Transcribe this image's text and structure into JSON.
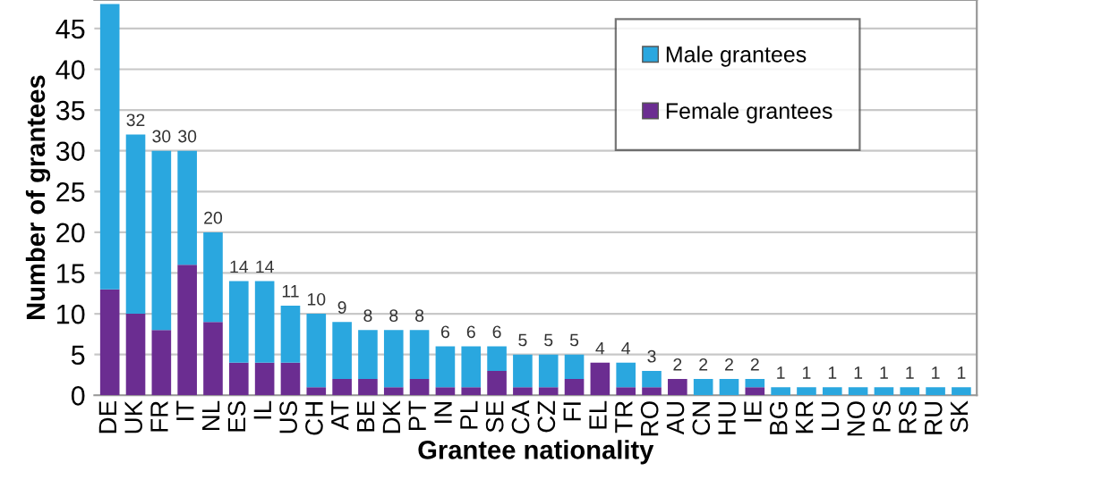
{
  "chart_data": {
    "type": "bar",
    "stacked": true,
    "xlabel": "Grantee nationality",
    "ylabel": "Number of grantees",
    "categories": [
      "DE",
      "UK",
      "FR",
      "IT",
      "NL",
      "ES",
      "IL",
      "US",
      "CH",
      "AT",
      "BE",
      "DK",
      "PT",
      "IN",
      "PL",
      "SE",
      "CA",
      "CZ",
      "FI",
      "EL",
      "TR",
      "RO",
      "AU",
      "CN",
      "HU",
      "IE",
      "BG",
      "KR",
      "LU",
      "NO",
      "PS",
      "RS",
      "RU",
      "SK"
    ],
    "series": [
      {
        "name": "Female grantees",
        "color": "#6b2d91",
        "values": [
          13,
          10,
          8,
          16,
          9,
          4,
          4,
          4,
          1,
          2,
          2,
          1,
          2,
          1,
          1,
          3,
          1,
          1,
          2,
          4,
          1,
          1,
          2,
          0,
          0,
          1,
          0,
          0,
          0,
          0,
          0,
          0,
          0,
          0
        ]
      },
      {
        "name": "Male grantees",
        "color": "#2aa7df",
        "values": [
          35,
          22,
          22,
          14,
          11,
          10,
          10,
          7,
          9,
          7,
          6,
          7,
          6,
          5,
          5,
          3,
          4,
          4,
          3,
          0,
          3,
          2,
          0,
          2,
          2,
          1,
          1,
          1,
          1,
          1,
          1,
          1,
          1,
          1
        ]
      }
    ],
    "totals": [
      null,
      "32",
      "30",
      "30",
      "20",
      "14",
      "14",
      "11",
      "10",
      "9",
      "8",
      "8",
      "8",
      "6",
      "6",
      "6",
      "5",
      "5",
      "5",
      "4",
      "4",
      "3",
      "2",
      "2",
      "2",
      "2",
      "1",
      "1",
      "1",
      "1",
      "1",
      "1",
      "1",
      "1"
    ],
    "ylim": [
      0,
      48.5
    ],
    "yticks": [
      0,
      5,
      10,
      15,
      20,
      25,
      30,
      35,
      40,
      45
    ],
    "grid": "y",
    "legend": "top right"
  }
}
